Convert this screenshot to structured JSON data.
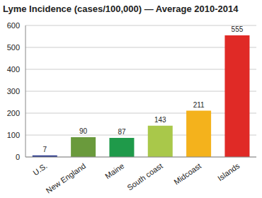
{
  "chart_data": {
    "type": "bar",
    "title": "Lyme Incidence (cases/100,000) — Average 2010-2014",
    "categories": [
      "U.S.",
      "New England",
      "Maine",
      "South coast",
      "Midcoast",
      "Islands"
    ],
    "values": [
      7,
      90,
      87,
      143,
      211,
      555
    ],
    "colors": [
      "#2b3a8f",
      "#6a9a3c",
      "#1f9a4a",
      "#a9c84a",
      "#f4b21c",
      "#e02a26"
    ],
    "ylim": [
      0,
      600
    ],
    "yticks": [
      0,
      100,
      200,
      300,
      400,
      500,
      600
    ],
    "grid": true,
    "data_labels": true
  }
}
